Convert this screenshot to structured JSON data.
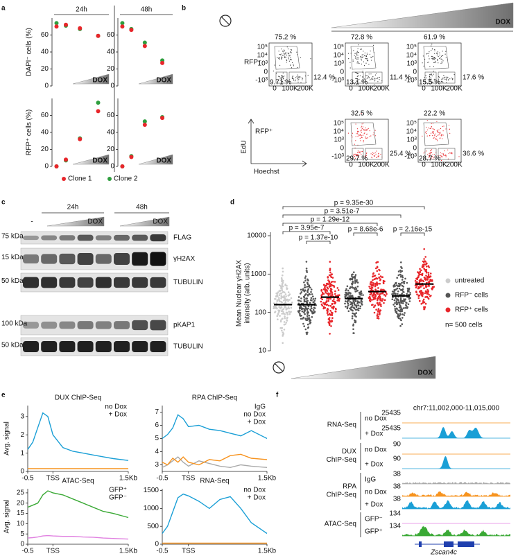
{
  "panel_labels": [
    "a",
    "b",
    "c",
    "d",
    "e",
    "f"
  ],
  "chart_data": [
    {
      "type": "scatter",
      "columns": [
        "24h",
        "48h"
      ],
      "x_annotation": "DOX",
      "categories": [
        null,
        null,
        null,
        null
      ],
      "rows": [
        {
          "ylabel": "DAPI⁻ cells (%)",
          "ylim": [
            0,
            80
          ],
          "yticks": [
            0,
            20,
            40,
            60
          ]
        },
        {
          "ylabel": "RFP⁺ cells (%)",
          "ylim": [
            0,
            80
          ],
          "yticks": [
            0,
            20,
            40,
            60
          ]
        }
      ],
      "series": [
        {
          "name": "Clone 1",
          "color": "#e8262b",
          "values": [
            [
              70,
              72,
              68,
              59
            ],
            [
              70,
              66,
              47,
              27
            ],
            [
              0,
              8,
              32,
              65
            ],
            [
              0,
              11,
              49,
              57
            ]
          ]
        },
        {
          "name": "Clone 2",
          "color": "#2e9e3e",
          "values": [
            [
              74,
              71,
              67,
              59
            ],
            [
              74,
              67,
              51,
              30
            ],
            [
              0,
              7,
              33,
              75
            ],
            [
              0,
              12,
              53,
              58
            ]
          ]
        }
      ]
    },
    {
      "type": "strip",
      "ylabel": [
        "Mean Nuclear γH2AX",
        "intensity (arb. units)"
      ],
      "log_scale": true,
      "ylim": [
        10,
        10000
      ],
      "yticks": [
        10,
        100,
        1000,
        10000
      ],
      "x_annotation": "DOX",
      "categories": [
        null,
        null,
        null,
        null,
        null,
        null,
        null
      ],
      "series": [
        {
          "name": "untreated",
          "color": "#cccccc",
          "values": [
            160,
            null,
            null,
            null,
            null,
            null,
            null
          ]
        },
        {
          "name": "RFP⁻ cells",
          "color": "#555555",
          "values": [
            null,
            160,
            null,
            230,
            null,
            270,
            null
          ]
        },
        {
          "name": "RFP⁺ cells",
          "color": "#e8262b",
          "values": [
            null,
            null,
            250,
            null,
            350,
            null,
            550
          ]
        }
      ],
      "legend_note": "n= 500 cells",
      "annotations": [
        "p = 9.35e-30",
        "p = 3.51e-7",
        "p = 1.29e-12",
        "p = 3.95e-7",
        "p = 1.37e-10",
        "p = 8.68e-6",
        "p = 2.16e-15"
      ]
    },
    {
      "type": "line",
      "title": "DUX ChIP-Seq",
      "ylabel": "Avg. signal",
      "x": [
        -0.5,
        -0.4,
        -0.3,
        -0.2,
        -0.1,
        0,
        0.2,
        0.4,
        0.6,
        0.8,
        1,
        1.2,
        1.5
      ],
      "xlim": [
        -0.5,
        1.5
      ],
      "xticks": [
        -0.5,
        {
          "value": 0,
          "label": "TSS"
        },
        {
          "value": 1.5,
          "label": "1.5Kb"
        }
      ],
      "ylim": [
        0,
        3.6
      ],
      "yticks": [
        0,
        1,
        2,
        3
      ],
      "series": [
        {
          "name": "no Dox",
          "color": "#f7931e",
          "values": [
            0.15,
            0.15,
            0.15,
            0.15,
            0.15,
            0.15,
            0.15,
            0.15,
            0.15,
            0.15,
            0.15,
            0.15,
            0.15
          ]
        },
        {
          "name": "+ Dox",
          "color": "#1a9fd6",
          "values": [
            1.2,
            1.6,
            2.4,
            3.2,
            3.0,
            2.0,
            1.3,
            1.1,
            1.0,
            0.9,
            0.8,
            0.7,
            0.6
          ]
        }
      ]
    },
    {
      "type": "line",
      "title": "RPA ChIP-Seq",
      "x": [
        -0.5,
        -0.4,
        -0.3,
        -0.2,
        -0.1,
        0,
        0.2,
        0.4,
        0.6,
        0.8,
        1,
        1.2,
        1.5
      ],
      "xlim": [
        -0.5,
        1.5
      ],
      "xticks": [
        -0.5,
        {
          "value": 0,
          "label": "TSS"
        },
        {
          "value": 1.5,
          "label": "1.5Kb"
        }
      ],
      "ylim": [
        2.5,
        7.5
      ],
      "yticks": [
        3,
        4,
        5,
        6,
        7
      ],
      "series": [
        {
          "name": "IgG",
          "color": "#aaaaaa",
          "values": [
            2.8,
            3.0,
            3.3,
            3.6,
            3.2,
            2.9,
            3.3,
            3.1,
            2.9,
            2.8,
            3.0,
            2.9,
            2.8
          ]
        },
        {
          "name": "no Dox",
          "color": "#f7931e",
          "values": [
            3.2,
            3.0,
            3.5,
            3.2,
            3.6,
            3.2,
            3.0,
            3.4,
            3.3,
            3.7,
            3.8,
            3.5,
            3.4
          ]
        },
        {
          "name": "+ Dox",
          "color": "#1a9fd6",
          "values": [
            5.0,
            5.3,
            5.8,
            6.8,
            6.5,
            5.9,
            6.0,
            5.7,
            5.6,
            5.4,
            5.2,
            5.6,
            5.0
          ]
        }
      ]
    },
    {
      "type": "line",
      "title": "ATAC-Seq",
      "ylabel": "Avg. signal",
      "x": [
        -0.5,
        -0.4,
        -0.3,
        -0.2,
        -0.1,
        0,
        0.2,
        0.4,
        0.6,
        0.8,
        1,
        1.2,
        1.5
      ],
      "xlim": [
        -0.5,
        1.5
      ],
      "xticks": [
        -0.5,
        {
          "value": 0,
          "label": "TSS"
        },
        {
          "value": 1.5,
          "label": "1.5Kb"
        }
      ],
      "ylim": [
        0,
        27
      ],
      "yticks": [
        0,
        5,
        10,
        15,
        20,
        25
      ],
      "series": [
        {
          "name": "GFP⁺",
          "color": "#3aa935",
          "values": [
            18,
            19,
            20,
            24,
            26,
            25,
            24,
            22,
            20,
            18,
            16,
            15,
            13
          ]
        },
        {
          "name": "GFP⁻",
          "color": "#e080e0",
          "values": [
            3,
            3.2,
            3.5,
            4,
            4.2,
            4,
            3.8,
            3.8,
            3.5,
            3.4,
            3,
            2.8,
            2.5
          ]
        }
      ]
    },
    {
      "type": "line",
      "title": "RNA-Seq",
      "x": [
        -0.5,
        -0.4,
        -0.3,
        -0.2,
        -0.1,
        0,
        0.2,
        0.4,
        0.6,
        0.8,
        1,
        1.2,
        1.5
      ],
      "xlim": [
        -0.5,
        1.5
      ],
      "xticks": [
        -0.5,
        {
          "value": 0,
          "label": "TSS"
        },
        {
          "value": 1.5,
          "label": "1.5Kb"
        }
      ],
      "ylim": [
        0,
        1550
      ],
      "yticks": [
        0,
        500,
        1000,
        1500
      ],
      "series": [
        {
          "name": "no Dox",
          "color": "#f7931e",
          "values": [
            30,
            30,
            30,
            30,
            30,
            30,
            30,
            30,
            30,
            30,
            30,
            30,
            30
          ]
        },
        {
          "name": "+ Dox",
          "color": "#1a9fd6",
          "values": [
            300,
            500,
            900,
            1300,
            1400,
            1350,
            1200,
            1000,
            1250,
            1330,
            1000,
            600,
            300
          ]
        }
      ]
    }
  ],
  "flow": {
    "x_annotation": "DOX",
    "ylabel": "EdU",
    "xlabel": "Hoechst",
    "xticks": [
      "0",
      "100K",
      "200K"
    ],
    "yticks": [
      "10⁵",
      "10⁴",
      "10³",
      "0",
      "-10³"
    ],
    "rows": [
      {
        "label": "RFP⁻",
        "plots": [
          [
            "75.2 %",
            "12.4 %",
            "9.71 %"
          ],
          [
            "72.8 %",
            "11.4 %",
            "13.1 %"
          ],
          [
            "61.9 %",
            "17.6 %",
            "15.5 %"
          ]
        ]
      },
      {
        "label": "RFP⁺",
        "plots": [
          [
            "32.5 %",
            "25.4 %",
            "29.7 %"
          ],
          [
            "22.2 %",
            "36.6 %",
            "28.7 %"
          ]
        ]
      }
    ]
  },
  "blot": {
    "timepoints": [
      "24h",
      "48h"
    ],
    "untreated": "-",
    "dose_label": "DOX",
    "rows": [
      {
        "marker": "75 kDa",
        "label": "FLAG"
      },
      {
        "marker": "15 kDa",
        "label": "γH2AX"
      },
      {
        "marker": "50 kDa",
        "label": "TUBULIN"
      },
      {
        "marker": "100 kDa",
        "label": "pKAP1"
      },
      {
        "marker": "50 kDa",
        "label": "TUBULIN"
      }
    ]
  },
  "tracks": {
    "locus": "chr7:11,002,000-11,015,000",
    "gene": "Zscan4c",
    "groups": [
      {
        "label": [
          "RNA-Seq"
        ],
        "tracks": [
          {
            "label": "no Dox",
            "scale": "25435",
            "color": "#f7931e"
          },
          {
            "label": "+ Dox",
            "scale": "25435",
            "color": "#1a9fd6"
          }
        ]
      },
      {
        "label": [
          "DUX",
          "ChIP-Seq"
        ],
        "tracks": [
          {
            "label": "no Dox",
            "scale": "90",
            "color": "#f7931e"
          },
          {
            "label": "+ Dox",
            "scale": "90",
            "color": "#1a9fd6"
          }
        ]
      },
      {
        "label": [
          "RPA",
          "ChIP-Seq"
        ],
        "tracks": [
          {
            "label": "IgG",
            "scale": "38",
            "color": "#aaaaaa"
          },
          {
            "label": "no Dox",
            "scale": "38",
            "color": "#f7931e"
          },
          {
            "label": "+ Dox",
            "scale": "38",
            "color": "#1a9fd6"
          }
        ]
      },
      {
        "label": [
          "ATAC-Seq"
        ],
        "tracks": [
          {
            "label": "GFP⁻",
            "scale": "134",
            "color": "#e080e0"
          },
          {
            "label": "GFP⁺",
            "scale": "134",
            "color": "#3aa935"
          }
        ]
      }
    ]
  }
}
